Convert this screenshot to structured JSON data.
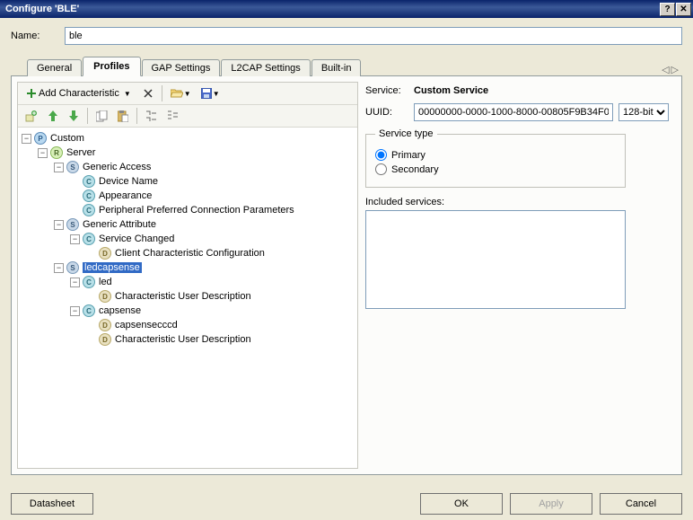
{
  "window": {
    "title": "Configure 'BLE'"
  },
  "name": {
    "label": "Name:",
    "value": "ble"
  },
  "tabs": {
    "items": [
      "General",
      "Profiles",
      "GAP Settings",
      "L2CAP Settings",
      "Built-in"
    ],
    "active": 1
  },
  "toolbar": {
    "add_char": "Add Characteristic"
  },
  "tree": {
    "root": {
      "badge": "P",
      "label": "Custom",
      "expanded": true,
      "children": [
        {
          "badge": "R",
          "label": "Server",
          "expanded": true,
          "children": [
            {
              "badge": "S",
              "label": "Generic Access",
              "expanded": true,
              "children": [
                {
                  "badge": "C",
                  "label": "Device Name"
                },
                {
                  "badge": "C",
                  "label": "Appearance"
                },
                {
                  "badge": "C",
                  "label": "Peripheral Preferred Connection Parameters"
                }
              ]
            },
            {
              "badge": "S",
              "label": "Generic Attribute",
              "expanded": true,
              "children": [
                {
                  "badge": "C",
                  "label": "Service Changed",
                  "expanded": true,
                  "children": [
                    {
                      "badge": "D",
                      "label": "Client Characteristic Configuration"
                    }
                  ]
                }
              ]
            },
            {
              "badge": "S",
              "label": "ledcapsense",
              "selected": true,
              "expanded": true,
              "children": [
                {
                  "badge": "C",
                  "label": "led",
                  "expanded": true,
                  "children": [
                    {
                      "badge": "D",
                      "label": "Characteristic User Description"
                    }
                  ]
                },
                {
                  "badge": "C",
                  "label": "capsense",
                  "expanded": true,
                  "children": [
                    {
                      "badge": "D",
                      "label": "capsensecccd"
                    },
                    {
                      "badge": "D",
                      "label": "Characteristic User Description"
                    }
                  ]
                }
              ]
            }
          ]
        }
      ]
    }
  },
  "details": {
    "service_label": "Service:",
    "service_name": "Custom Service",
    "uuid_label": "UUID:",
    "uuid_value": "00000000-0000-1000-8000-00805F9B34F0",
    "bit_width": "128-bit",
    "service_type_legend": "Service type",
    "primary": "Primary",
    "secondary": "Secondary",
    "selected_type": "primary",
    "included_label": "Included services:"
  },
  "buttons": {
    "datasheet": "Datasheet",
    "ok": "OK",
    "apply": "Apply",
    "cancel": "Cancel"
  },
  "colors": {
    "titlebar_bg": "#0a246a",
    "panel_bg": "#ece9d8",
    "tab_active_bg": "#fcfcfa",
    "selection_bg": "#316ac5",
    "input_border": "#7f9db9"
  }
}
